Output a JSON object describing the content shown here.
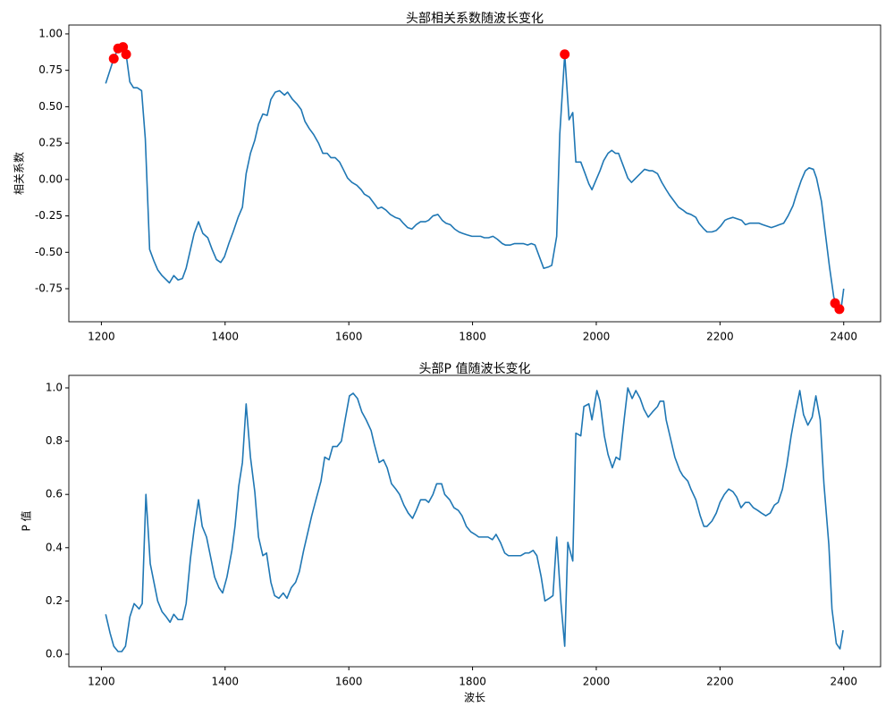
{
  "chart_data": [
    {
      "type": "line",
      "title": "头部相关系数随波长变化",
      "y_label": "相关系数",
      "xlim": [
        1147.4,
        2459.6
      ],
      "xticks": [
        1200,
        1400,
        1600,
        1800,
        2000,
        2200,
        2400
      ],
      "ylim": [
        -0.977,
        1.061
      ],
      "yticks": [
        {
          "value": -0.75,
          "label": "-0.75"
        },
        {
          "value": -0.5,
          "label": "-0.50"
        },
        {
          "value": -0.25,
          "label": "-0.25"
        },
        {
          "value": 0,
          "label": "0.00"
        },
        {
          "value": 0.25,
          "label": "0.25"
        },
        {
          "value": 0.5,
          "label": "0.50"
        },
        {
          "value": 0.75,
          "label": "0.75"
        },
        {
          "value": 1,
          "label": "1.00"
        }
      ],
      "series": [
        {
          "color": "#1f77b4",
          "mode": "line",
          "x": [
            1207,
            1220,
            1227,
            1235,
            1240,
            1246,
            1252,
            1258,
            1265,
            1271,
            1278,
            1285,
            1291,
            1298,
            1310,
            1317,
            1324,
            1331,
            1337,
            1344,
            1350,
            1357,
            1364,
            1372,
            1379,
            1386,
            1393,
            1399,
            1406,
            1413,
            1421,
            1428,
            1434,
            1441,
            1448,
            1454,
            1461,
            1468,
            1474,
            1481,
            1488,
            1496,
            1501,
            1509,
            1516,
            1523,
            1529,
            1536,
            1543,
            1551,
            1558,
            1565,
            1571,
            1578,
            1585,
            1591,
            1598,
            1605,
            1613,
            1620,
            1625,
            1633,
            1640,
            1647,
            1653,
            1660,
            1667,
            1675,
            1682,
            1688,
            1695,
            1702,
            1709,
            1716,
            1724,
            1729,
            1736,
            1744,
            1751,
            1757,
            1764,
            1771,
            1778,
            1784,
            1791,
            1799,
            1806,
            1813,
            1819,
            1826,
            1833,
            1840,
            1848,
            1853,
            1861,
            1868,
            1875,
            1882,
            1889,
            1895,
            1901,
            1908,
            1915,
            1923,
            1928,
            1936,
            1941,
            1949,
            1956,
            1962,
            1967,
            1975,
            1982,
            1988,
            1993,
            1999,
            2006,
            2012,
            2019,
            2025,
            2031,
            2036,
            2044,
            2051,
            2057,
            2064,
            2071,
            2078,
            2086,
            2091,
            2099,
            2106,
            2113,
            2119,
            2126,
            2133,
            2140,
            2146,
            2153,
            2161,
            2166,
            2174,
            2179,
            2187,
            2194,
            2201,
            2208,
            2213,
            2221,
            2228,
            2235,
            2241,
            2248,
            2255,
            2263,
            2269,
            2276,
            2283,
            2290,
            2296,
            2303,
            2310,
            2318,
            2323,
            2331,
            2338,
            2344,
            2351,
            2356,
            2364,
            2370,
            2377,
            2384,
            2390,
            2396,
            2400
          ],
          "values": [
            0.66,
            0.83,
            0.9,
            0.91,
            0.86,
            0.67,
            0.63,
            0.63,
            0.61,
            0.28,
            -0.48,
            -0.56,
            -0.62,
            -0.66,
            -0.71,
            -0.66,
            -0.69,
            -0.68,
            -0.61,
            -0.48,
            -0.37,
            -0.29,
            -0.37,
            -0.4,
            -0.48,
            -0.55,
            -0.57,
            -0.53,
            -0.44,
            -0.36,
            -0.26,
            -0.19,
            0.04,
            0.18,
            0.27,
            0.38,
            0.45,
            0.44,
            0.55,
            0.6,
            0.61,
            0.58,
            0.6,
            0.55,
            0.52,
            0.48,
            0.4,
            0.35,
            0.31,
            0.25,
            0.18,
            0.18,
            0.15,
            0.15,
            0.12,
            0.07,
            0.01,
            -0.02,
            -0.04,
            -0.07,
            -0.1,
            -0.12,
            -0.16,
            -0.2,
            -0.19,
            -0.21,
            -0.24,
            -0.26,
            -0.27,
            -0.3,
            -0.33,
            -0.34,
            -0.31,
            -0.29,
            -0.29,
            -0.28,
            -0.25,
            -0.24,
            -0.28,
            -0.3,
            -0.31,
            -0.34,
            -0.36,
            -0.37,
            -0.38,
            -0.39,
            -0.39,
            -0.39,
            -0.4,
            -0.4,
            -0.39,
            -0.41,
            -0.44,
            -0.45,
            -0.45,
            -0.44,
            -0.44,
            -0.44,
            -0.45,
            -0.44,
            -0.45,
            -0.53,
            -0.61,
            -0.6,
            -0.59,
            -0.39,
            0.31,
            0.86,
            0.41,
            0.46,
            0.12,
            0.12,
            0.04,
            -0.03,
            -0.07,
            -0.01,
            0.06,
            0.13,
            0.18,
            0.2,
            0.18,
            0.18,
            0.09,
            0.01,
            -0.02,
            0.01,
            0.04,
            0.07,
            0.06,
            0.06,
            0.04,
            -0.02,
            -0.07,
            -0.11,
            -0.15,
            -0.19,
            -0.21,
            -0.23,
            -0.24,
            -0.26,
            -0.3,
            -0.34,
            -0.36,
            -0.36,
            -0.35,
            -0.32,
            -0.28,
            -0.27,
            -0.26,
            -0.27,
            -0.28,
            -0.31,
            -0.3,
            -0.3,
            -0.3,
            -0.31,
            -0.32,
            -0.33,
            -0.32,
            -0.31,
            -0.3,
            -0.25,
            -0.18,
            -0.11,
            -0.01,
            0.06,
            0.08,
            0.07,
            0.01,
            -0.15,
            -0.36,
            -0.6,
            -0.81,
            -0.85,
            -0.88,
            -0.75
          ]
        },
        {
          "color": "#ff0000",
          "mode": "markers",
          "x": [
            1220,
            1227,
            1235,
            1240,
            1949,
            2386,
            2393
          ],
          "values": [
            0.83,
            0.9,
            0.91,
            0.86,
            0.86,
            -0.85,
            -0.89
          ]
        }
      ]
    },
    {
      "type": "line",
      "title": "头部P 值随波长变化",
      "y_label": "P 值",
      "x_label": "波长",
      "xlim": [
        1147.4,
        2459.6
      ],
      "xticks": [
        1200,
        1400,
        1600,
        1800,
        2000,
        2200,
        2400
      ],
      "ylim": [
        -0.047,
        1.047
      ],
      "yticks": [
        {
          "value": 0,
          "label": "0.0"
        },
        {
          "value": 0.2,
          "label": "0.2"
        },
        {
          "value": 0.4,
          "label": "0.4"
        },
        {
          "value": 0.6,
          "label": "0.6"
        },
        {
          "value": 0.8,
          "label": "0.8"
        },
        {
          "value": 1,
          "label": "1.0"
        }
      ],
      "series": [
        {
          "color": "#1f77b4",
          "mode": "line",
          "x": [
            1207,
            1214,
            1220,
            1227,
            1233,
            1239,
            1246,
            1253,
            1261,
            1266,
            1272,
            1279,
            1285,
            1291,
            1298,
            1305,
            1311,
            1317,
            1324,
            1331,
            1337,
            1344,
            1350,
            1357,
            1363,
            1370,
            1377,
            1383,
            1390,
            1396,
            1403,
            1411,
            1416,
            1422,
            1428,
            1434,
            1441,
            1448,
            1454,
            1461,
            1467,
            1474,
            1480,
            1487,
            1494,
            1500,
            1507,
            1514,
            1520,
            1527,
            1535,
            1540,
            1548,
            1555,
            1561,
            1568,
            1574,
            1581,
            1588,
            1594,
            1601,
            1607,
            1614,
            1621,
            1628,
            1636,
            1641,
            1649,
            1656,
            1662,
            1669,
            1676,
            1682,
            1689,
            1696,
            1703,
            1709,
            1716,
            1724,
            1729,
            1736,
            1742,
            1750,
            1755,
            1763,
            1770,
            1777,
            1783,
            1790,
            1797,
            1804,
            1810,
            1817,
            1825,
            1832,
            1838,
            1845,
            1852,
            1858,
            1865,
            1872,
            1878,
            1885,
            1891,
            1898,
            1904,
            1911,
            1917,
            1924,
            1930,
            1936,
            1943,
            1949,
            1954,
            1962,
            1967,
            1975,
            1980,
            1988,
            1993,
            2001,
            2006,
            2013,
            2019,
            2026,
            2032,
            2038,
            2045,
            2051,
            2058,
            2064,
            2071,
            2077,
            2084,
            2091,
            2099,
            2103,
            2109,
            2113,
            2120,
            2127,
            2135,
            2140,
            2148,
            2153,
            2161,
            2168,
            2174,
            2179,
            2187,
            2194,
            2200,
            2207,
            2214,
            2221,
            2227,
            2234,
            2241,
            2247,
            2254,
            2261,
            2267,
            2274,
            2281,
            2288,
            2294,
            2301,
            2308,
            2315,
            2322,
            2329,
            2335,
            2342,
            2349,
            2355,
            2362,
            2368,
            2376,
            2381,
            2388,
            2394,
            2399
          ],
          "values": [
            0.15,
            0.08,
            0.03,
            0.01,
            0.01,
            0.03,
            0.14,
            0.19,
            0.17,
            0.19,
            0.6,
            0.34,
            0.27,
            0.2,
            0.16,
            0.14,
            0.12,
            0.15,
            0.13,
            0.13,
            0.19,
            0.36,
            0.47,
            0.58,
            0.48,
            0.44,
            0.36,
            0.29,
            0.25,
            0.23,
            0.29,
            0.39,
            0.48,
            0.63,
            0.72,
            0.94,
            0.74,
            0.61,
            0.44,
            0.37,
            0.38,
            0.27,
            0.22,
            0.21,
            0.23,
            0.21,
            0.25,
            0.27,
            0.31,
            0.39,
            0.47,
            0.52,
            0.59,
            0.65,
            0.74,
            0.73,
            0.78,
            0.78,
            0.8,
            0.88,
            0.97,
            0.98,
            0.96,
            0.91,
            0.88,
            0.84,
            0.79,
            0.72,
            0.73,
            0.7,
            0.64,
            0.62,
            0.6,
            0.56,
            0.53,
            0.51,
            0.54,
            0.58,
            0.58,
            0.57,
            0.6,
            0.64,
            0.64,
            0.6,
            0.58,
            0.55,
            0.54,
            0.52,
            0.48,
            0.46,
            0.45,
            0.44,
            0.44,
            0.44,
            0.43,
            0.45,
            0.42,
            0.38,
            0.37,
            0.37,
            0.37,
            0.37,
            0.38,
            0.38,
            0.39,
            0.37,
            0.29,
            0.2,
            0.21,
            0.22,
            0.44,
            0.19,
            0.03,
            0.42,
            0.35,
            0.83,
            0.82,
            0.93,
            0.94,
            0.88,
            0.99,
            0.95,
            0.82,
            0.75,
            0.7,
            0.74,
            0.73,
            0.88,
            1.0,
            0.96,
            0.99,
            0.96,
            0.92,
            0.89,
            0.91,
            0.93,
            0.95,
            0.95,
            0.88,
            0.81,
            0.74,
            0.69,
            0.67,
            0.65,
            0.62,
            0.58,
            0.52,
            0.48,
            0.48,
            0.5,
            0.53,
            0.57,
            0.6,
            0.62,
            0.61,
            0.59,
            0.55,
            0.57,
            0.57,
            0.55,
            0.54,
            0.53,
            0.52,
            0.53,
            0.56,
            0.57,
            0.62,
            0.71,
            0.82,
            0.91,
            0.99,
            0.9,
            0.86,
            0.89,
            0.97,
            0.88,
            0.64,
            0.41,
            0.17,
            0.04,
            0.02,
            0.09
          ]
        }
      ]
    }
  ]
}
